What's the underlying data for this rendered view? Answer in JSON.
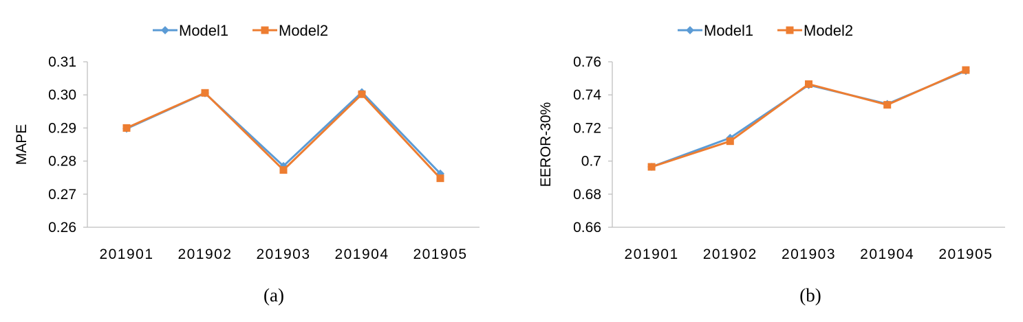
{
  "colors": {
    "model1": "#5B9BD5",
    "model2": "#ED7D31",
    "axis": "#BFBFBF"
  },
  "chart_data": [
    {
      "type": "line",
      "panel_label": "(a)",
      "title": "",
      "xlabel": "",
      "ylabel": "MAPE",
      "categories": [
        "201901",
        "201902",
        "201903",
        "201904",
        "201905"
      ],
      "ylim": [
        0.26,
        0.31
      ],
      "yticks": [
        0.26,
        0.27,
        0.28,
        0.29,
        0.3,
        0.31
      ],
      "ytick_labels": [
        "0.26",
        "0.27",
        "0.28",
        "0.29",
        "0.30",
        "0.31"
      ],
      "grid": false,
      "legend": "top",
      "series": [
        {
          "name": "Model1",
          "marker": "diamond",
          "values": [
            0.2898,
            0.3005,
            0.2785,
            0.3008,
            0.2762
          ]
        },
        {
          "name": "Model2",
          "marker": "square",
          "values": [
            0.29,
            0.3006,
            0.2773,
            0.3002,
            0.2748
          ]
        }
      ]
    },
    {
      "type": "line",
      "panel_label": "(b)",
      "title": "",
      "xlabel": "",
      "ylabel": "EEROR-30%",
      "categories": [
        "201901",
        "201902",
        "201903",
        "201904",
        "201905"
      ],
      "ylim": [
        0.66,
        0.76
      ],
      "yticks": [
        0.66,
        0.68,
        0.7,
        0.72,
        0.74,
        0.76
      ],
      "ytick_labels": [
        "0.66",
        "0.68",
        "0.7",
        "0.72",
        "0.74",
        "0.76"
      ],
      "grid": false,
      "legend": "top",
      "series": [
        {
          "name": "Model1",
          "marker": "diamond",
          "values": [
            0.6965,
            0.714,
            0.746,
            0.7345,
            0.7545
          ]
        },
        {
          "name": "Model2",
          "marker": "square",
          "values": [
            0.6965,
            0.712,
            0.7465,
            0.734,
            0.755
          ]
        }
      ]
    }
  ]
}
